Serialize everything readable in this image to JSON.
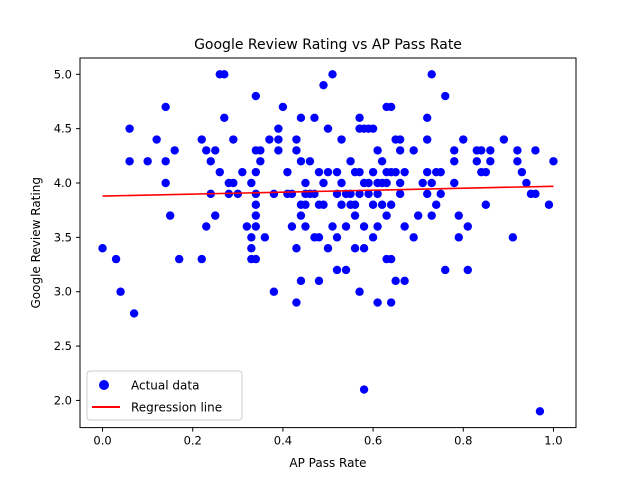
{
  "chart_data": {
    "type": "scatter",
    "title": "Google Review Rating vs AP Pass Rate",
    "xlabel": "AP Pass Rate",
    "ylabel": "Google Review Rating",
    "xlim": [
      -0.05,
      1.05
    ],
    "ylim": [
      1.75,
      5.15
    ],
    "xticks": [
      0.0,
      0.2,
      0.4,
      0.6,
      0.8,
      1.0
    ],
    "xtick_labels": [
      "0.0",
      "0.2",
      "0.4",
      "0.6",
      "0.8",
      "1.0"
    ],
    "yticks": [
      2.0,
      2.5,
      3.0,
      3.5,
      4.0,
      4.5,
      5.0
    ],
    "ytick_labels": [
      "2.0",
      "2.5",
      "3.0",
      "3.5",
      "4.0",
      "4.5",
      "5.0"
    ],
    "grid": false,
    "legend_position": "lower-left",
    "series": [
      {
        "name": "Actual data",
        "kind": "scatter",
        "color": "#0000ff",
        "points": [
          [
            0.0,
            3.4
          ],
          [
            0.03,
            3.3
          ],
          [
            0.04,
            3.0
          ],
          [
            0.06,
            4.5
          ],
          [
            0.06,
            4.2
          ],
          [
            0.07,
            2.8
          ],
          [
            0.1,
            4.2
          ],
          [
            0.12,
            4.4
          ],
          [
            0.14,
            4.7
          ],
          [
            0.14,
            4.2
          ],
          [
            0.14,
            4.0
          ],
          [
            0.15,
            3.7
          ],
          [
            0.16,
            4.3
          ],
          [
            0.17,
            3.3
          ],
          [
            0.22,
            4.4
          ],
          [
            0.22,
            3.3
          ],
          [
            0.23,
            4.3
          ],
          [
            0.23,
            3.6
          ],
          [
            0.24,
            4.2
          ],
          [
            0.24,
            3.9
          ],
          [
            0.25,
            4.3
          ],
          [
            0.25,
            3.7
          ],
          [
            0.26,
            5.0
          ],
          [
            0.26,
            4.1
          ],
          [
            0.27,
            5.0
          ],
          [
            0.27,
            4.6
          ],
          [
            0.28,
            4.0
          ],
          [
            0.28,
            3.9
          ],
          [
            0.29,
            4.4
          ],
          [
            0.29,
            4.0
          ],
          [
            0.3,
            3.9
          ],
          [
            0.31,
            4.1
          ],
          [
            0.32,
            3.6
          ],
          [
            0.33,
            4.0
          ],
          [
            0.33,
            3.5
          ],
          [
            0.33,
            3.4
          ],
          [
            0.33,
            3.3
          ],
          [
            0.34,
            4.8
          ],
          [
            0.34,
            4.3
          ],
          [
            0.34,
            4.1
          ],
          [
            0.34,
            3.9
          ],
          [
            0.34,
            3.8
          ],
          [
            0.34,
            3.7
          ],
          [
            0.34,
            3.6
          ],
          [
            0.34,
            3.3
          ],
          [
            0.35,
            4.3
          ],
          [
            0.35,
            4.2
          ],
          [
            0.36,
            3.5
          ],
          [
            0.37,
            4.4
          ],
          [
            0.38,
            3.9
          ],
          [
            0.38,
            3.0
          ],
          [
            0.39,
            4.5
          ],
          [
            0.39,
            4.4
          ],
          [
            0.39,
            4.3
          ],
          [
            0.4,
            4.7
          ],
          [
            0.41,
            4.1
          ],
          [
            0.41,
            3.9
          ],
          [
            0.42,
            3.9
          ],
          [
            0.42,
            3.6
          ],
          [
            0.43,
            4.4
          ],
          [
            0.43,
            4.3
          ],
          [
            0.43,
            3.4
          ],
          [
            0.43,
            2.9
          ],
          [
            0.44,
            4.6
          ],
          [
            0.44,
            4.2
          ],
          [
            0.44,
            3.8
          ],
          [
            0.44,
            3.7
          ],
          [
            0.44,
            3.1
          ],
          [
            0.45,
            4.0
          ],
          [
            0.45,
            3.9
          ],
          [
            0.45,
            3.8
          ],
          [
            0.45,
            3.6
          ],
          [
            0.46,
            4.2
          ],
          [
            0.46,
            3.9
          ],
          [
            0.47,
            4.6
          ],
          [
            0.47,
            3.9
          ],
          [
            0.47,
            3.5
          ],
          [
            0.48,
            4.1
          ],
          [
            0.48,
            3.8
          ],
          [
            0.48,
            3.5
          ],
          [
            0.48,
            3.1
          ],
          [
            0.49,
            4.9
          ],
          [
            0.49,
            4.0
          ],
          [
            0.49,
            3.8
          ],
          [
            0.5,
            4.5
          ],
          [
            0.5,
            4.1
          ],
          [
            0.5,
            3.4
          ],
          [
            0.51,
            5.0
          ],
          [
            0.51,
            3.6
          ],
          [
            0.52,
            4.1
          ],
          [
            0.52,
            3.9
          ],
          [
            0.52,
            3.5
          ],
          [
            0.52,
            3.2
          ],
          [
            0.53,
            4.4
          ],
          [
            0.53,
            4.0
          ],
          [
            0.53,
            3.8
          ],
          [
            0.54,
            3.9
          ],
          [
            0.54,
            3.6
          ],
          [
            0.54,
            3.2
          ],
          [
            0.55,
            4.2
          ],
          [
            0.55,
            3.9
          ],
          [
            0.55,
            3.8
          ],
          [
            0.56,
            4.1
          ],
          [
            0.56,
            3.8
          ],
          [
            0.56,
            3.7
          ],
          [
            0.56,
            3.4
          ],
          [
            0.57,
            4.6
          ],
          [
            0.57,
            4.5
          ],
          [
            0.57,
            4.1
          ],
          [
            0.57,
            3.9
          ],
          [
            0.57,
            3.0
          ],
          [
            0.58,
            4.5
          ],
          [
            0.58,
            4.0
          ],
          [
            0.58,
            3.6
          ],
          [
            0.58,
            3.4
          ],
          [
            0.58,
            2.1
          ],
          [
            0.59,
            4.5
          ],
          [
            0.59,
            4.0
          ],
          [
            0.59,
            3.9
          ],
          [
            0.6,
            4.5
          ],
          [
            0.6,
            4.1
          ],
          [
            0.6,
            3.8
          ],
          [
            0.6,
            3.5
          ],
          [
            0.61,
            4.3
          ],
          [
            0.61,
            4.0
          ],
          [
            0.61,
            3.9
          ],
          [
            0.61,
            3.6
          ],
          [
            0.61,
            2.9
          ],
          [
            0.62,
            4.2
          ],
          [
            0.62,
            4.0
          ],
          [
            0.62,
            3.8
          ],
          [
            0.63,
            4.7
          ],
          [
            0.63,
            4.1
          ],
          [
            0.63,
            4.0
          ],
          [
            0.63,
            3.7
          ],
          [
            0.63,
            3.3
          ],
          [
            0.64,
            4.7
          ],
          [
            0.64,
            4.1
          ],
          [
            0.64,
            3.8
          ],
          [
            0.64,
            3.3
          ],
          [
            0.64,
            2.9
          ],
          [
            0.65,
            4.4
          ],
          [
            0.65,
            4.1
          ],
          [
            0.65,
            3.1
          ],
          [
            0.66,
            4.4
          ],
          [
            0.66,
            4.3
          ],
          [
            0.66,
            4.0
          ],
          [
            0.66,
            3.9
          ],
          [
            0.67,
            4.1
          ],
          [
            0.67,
            3.6
          ],
          [
            0.67,
            3.1
          ],
          [
            0.69,
            4.3
          ],
          [
            0.69,
            3.5
          ],
          [
            0.7,
            3.7
          ],
          [
            0.71,
            4.0
          ],
          [
            0.72,
            4.6
          ],
          [
            0.72,
            4.4
          ],
          [
            0.72,
            4.1
          ],
          [
            0.72,
            3.9
          ],
          [
            0.73,
            5.0
          ],
          [
            0.73,
            4.0
          ],
          [
            0.73,
            3.7
          ],
          [
            0.74,
            4.1
          ],
          [
            0.74,
            3.8
          ],
          [
            0.75,
            4.1
          ],
          [
            0.75,
            3.9
          ],
          [
            0.76,
            4.8
          ],
          [
            0.76,
            3.2
          ],
          [
            0.78,
            4.3
          ],
          [
            0.78,
            4.2
          ],
          [
            0.78,
            4.0
          ],
          [
            0.79,
            3.7
          ],
          [
            0.79,
            3.5
          ],
          [
            0.8,
            4.4
          ],
          [
            0.81,
            3.6
          ],
          [
            0.81,
            3.2
          ],
          [
            0.83,
            4.3
          ],
          [
            0.83,
            4.2
          ],
          [
            0.84,
            4.3
          ],
          [
            0.84,
            4.1
          ],
          [
            0.85,
            4.1
          ],
          [
            0.85,
            3.8
          ],
          [
            0.86,
            4.3
          ],
          [
            0.86,
            4.2
          ],
          [
            0.89,
            4.4
          ],
          [
            0.91,
            3.5
          ],
          [
            0.92,
            4.3
          ],
          [
            0.92,
            4.2
          ],
          [
            0.93,
            4.1
          ],
          [
            0.94,
            4.0
          ],
          [
            0.95,
            3.9
          ],
          [
            0.96,
            4.3
          ],
          [
            0.96,
            3.9
          ],
          [
            0.97,
            1.9
          ],
          [
            0.99,
            3.8
          ],
          [
            1.0,
            4.2
          ]
        ]
      },
      {
        "name": "Regression line",
        "kind": "line",
        "color": "#ff0000",
        "x": [
          0.0,
          1.0
        ],
        "y": [
          3.88,
          3.97
        ]
      }
    ]
  }
}
